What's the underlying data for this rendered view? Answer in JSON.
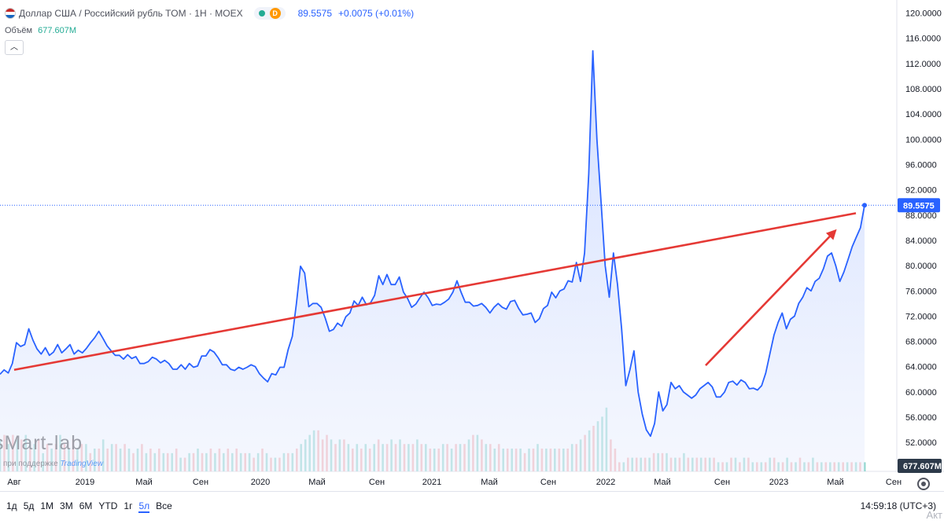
{
  "header": {
    "title": "Доллар США / Российский рубль TOM · 1H · MOEX",
    "flag_icon": "us-ru-flag-icon",
    "status_icon": "market-open-dot-icon",
    "delay_badge": "D",
    "last_price": "89.5575",
    "change": "+0.0075 (+0.01%)",
    "volume_label": "Объём",
    "volume_value": "677.607M",
    "collapse_icon": "chevron-up-icon"
  },
  "watermark": {
    "brand": "sMart-lab",
    "powered_prefix": "при поддержке",
    "powered_brand": "TradingView"
  },
  "bottom_bar": {
    "ranges": [
      "1д",
      "5д",
      "1М",
      "3М",
      "6М",
      "YTD",
      "1г",
      "5л",
      "Все"
    ],
    "active_range": "5л",
    "time": "14:59:18 (UTC+3)",
    "settings_icon": "gear-icon",
    "corner_text": "Акт"
  },
  "colors": {
    "line": "#2962ff",
    "area": "#e3ebff",
    "trend": "#e53935",
    "volume_up": "#7fd1c5",
    "volume_down": "#f5a3a3"
  },
  "chart_data": {
    "type": "area",
    "title": "Доллар США / Российский рубль TOM",
    "x_labels": [
      "Авг",
      "2019",
      "Май",
      "Сен",
      "2020",
      "Май",
      "Сен",
      "2021",
      "Май",
      "Сен",
      "2022",
      "Май",
      "Сен",
      "2023",
      "Май",
      "Сен"
    ],
    "y_ticks": [
      "120.0000",
      "116.0000",
      "112.0000",
      "108.0000",
      "104.0000",
      "100.0000",
      "96.0000",
      "92.0000",
      "88.0000",
      "84.0000",
      "80.0000",
      "76.0000",
      "72.0000",
      "68.0000",
      "64.0000",
      "60.0000",
      "56.0000",
      "52.0000"
    ],
    "ylim": [
      49.0,
      121.0
    ],
    "xlim": [
      0,
      1140
    ],
    "series": [
      {
        "values": [
          62.8,
          63.5,
          63.0,
          64.5,
          67.8,
          67.2,
          67.5,
          70.0,
          68.2,
          66.8,
          66.0,
          67.0,
          65.8,
          66.3,
          67.5,
          66.2,
          66.8,
          67.5,
          66.0,
          66.6,
          66.2,
          66.9,
          67.8,
          68.6,
          69.6,
          68.5,
          67.3,
          66.5,
          65.8,
          65.8,
          65.2,
          65.9,
          65.3,
          65.6,
          64.5,
          64.5,
          64.8,
          65.5,
          65.2,
          64.6,
          65.0,
          64.5,
          63.6,
          63.6,
          64.3,
          63.6,
          64.5,
          63.9,
          64.1,
          65.7,
          65.7,
          66.7,
          66.3,
          65.4,
          64.3,
          64.3,
          63.6,
          63.4,
          63.9,
          63.6,
          63.9,
          64.3,
          64.0,
          62.9,
          62.2,
          61.6,
          62.9,
          62.7,
          63.9,
          63.9,
          66.7,
          68.8,
          74.0,
          79.9,
          78.8,
          73.5,
          74.0,
          74.0,
          73.4,
          71.7,
          69.6,
          69.9,
          70.9,
          70.4,
          71.9,
          72.5,
          74.4,
          73.7,
          75.0,
          73.8,
          74.1,
          75.3,
          78.4,
          77.0,
          78.6,
          77.0,
          77.0,
          78.2,
          75.8,
          74.8,
          73.4,
          73.9,
          74.9,
          75.8,
          74.9,
          73.7,
          73.9,
          73.8,
          74.2,
          74.7,
          75.8,
          77.6,
          75.8,
          74.2,
          74.2,
          73.6,
          73.7,
          74.0,
          73.4,
          72.5,
          73.4,
          74.0,
          73.4,
          73.1,
          74.3,
          74.5,
          73.2,
          72.2,
          72.3,
          72.5,
          71.0,
          71.6,
          73.2,
          73.7,
          75.8,
          74.9,
          76.0,
          76.3,
          77.6,
          77.4,
          80.5,
          77.5,
          82.0,
          94.5,
          114.0,
          100.0,
          90.0,
          80.0,
          75.0,
          82.0,
          77.0,
          70.0,
          61.0,
          63.5,
          66.5,
          60.0,
          56.5,
          54.0,
          53.0,
          55.0,
          60.0,
          57.0,
          58.0,
          61.5,
          60.5,
          61.0,
          60.0,
          59.5,
          59.0,
          59.5,
          60.5,
          61.0,
          61.5,
          60.8,
          59.2,
          59.2,
          60.0,
          61.5,
          61.7,
          61.1,
          61.9,
          61.5,
          60.5,
          60.6,
          60.3,
          61.0,
          63.0,
          66.0,
          69.0,
          71.0,
          72.5,
          70.0,
          71.5,
          72.0,
          74.0,
          75.0,
          76.5,
          76.0,
          77.5,
          78.0,
          79.5,
          81.5,
          82.0,
          80.0,
          77.5,
          79.0,
          81.0,
          83.0,
          84.5,
          86.0,
          89.5575
        ]
      }
    ],
    "trend_lines": [
      {
        "x0": 18,
        "y0": 63.5,
        "x1": 1088,
        "y1": 88.3
      },
      {
        "x0": 897,
        "y0": 64.2,
        "x1": 1060,
        "y1": 85.3,
        "arrow": true
      }
    ],
    "last_value_label": "89.5575",
    "volume": {
      "label": "677.607M",
      "values": [
        7,
        8,
        6,
        8,
        7,
        7,
        8,
        5,
        6,
        7,
        4,
        6,
        5,
        6,
        8,
        6,
        5,
        7,
        5,
        6,
        6,
        4,
        5,
        5,
        7,
        5,
        6,
        6,
        5,
        6,
        5,
        4,
        5,
        6,
        4,
        5,
        4,
        5,
        4,
        4,
        4,
        5,
        3,
        3,
        4,
        4,
        5,
        4,
        4,
        5,
        4,
        5,
        4,
        5,
        4,
        5,
        4,
        4,
        4,
        3,
        4,
        5,
        4,
        3,
        3,
        3,
        4,
        4,
        4,
        5,
        6,
        7,
        8,
        9,
        9,
        7,
        8,
        7,
        6,
        7,
        7,
        6,
        5,
        6,
        5,
        6,
        5,
        6,
        7,
        6,
        6,
        7,
        6,
        7,
        6,
        6,
        6,
        7,
        6,
        6,
        5,
        5,
        5,
        6,
        6,
        5,
        6,
        6,
        6,
        7,
        8,
        8,
        7,
        6,
        6,
        5,
        6,
        5,
        5,
        5,
        5,
        5,
        4,
        5,
        5,
        6,
        5,
        5,
        5,
        5,
        5,
        5,
        5,
        6,
        6,
        7,
        8,
        9,
        10,
        11,
        12,
        14,
        7,
        5,
        2,
        2,
        3,
        3,
        3,
        3,
        3,
        3,
        4,
        4,
        4,
        4,
        3,
        3,
        3,
        4,
        3,
        3,
        3,
        3,
        3,
        3,
        3,
        2,
        2,
        2,
        3,
        3,
        2,
        3,
        3,
        2,
        2,
        2,
        2,
        3,
        3,
        2,
        2,
        3,
        2,
        2,
        3,
        2,
        2,
        3,
        2,
        2,
        2,
        2,
        2,
        2,
        2,
        2,
        2,
        2,
        2,
        2
      ],
      "up": [
        true,
        false,
        true,
        false,
        true,
        false,
        true,
        false,
        true,
        false,
        true,
        false,
        true,
        false,
        true,
        false,
        true,
        false,
        true,
        false,
        true,
        false,
        true,
        false,
        true,
        false,
        true,
        false,
        true,
        false,
        true,
        false,
        true,
        false,
        true,
        false,
        true,
        false,
        true,
        false,
        true,
        false,
        true,
        false,
        true,
        false,
        true,
        false,
        true,
        false,
        true,
        false,
        true,
        false,
        true,
        false,
        true,
        false,
        true,
        false,
        true,
        false,
        true,
        false,
        true,
        false,
        true,
        false,
        true,
        false,
        true,
        true,
        true,
        true,
        false,
        false,
        false,
        true,
        false,
        true,
        false,
        true,
        false,
        true,
        false,
        true,
        false,
        true,
        false,
        true,
        false,
        true,
        false,
        true,
        false,
        true,
        false,
        true,
        false,
        true,
        false,
        true,
        false,
        true,
        false,
        true,
        false,
        true,
        false,
        true,
        false,
        true,
        false,
        true,
        false,
        true,
        false,
        true,
        false,
        true,
        false,
        true,
        false,
        true,
        false,
        true,
        false,
        true,
        false,
        true,
        false,
        true,
        false,
        true,
        false,
        true,
        false,
        true,
        false,
        true,
        true,
        true,
        false,
        false,
        false,
        true,
        false,
        true,
        false,
        true,
        false,
        true,
        false,
        true,
        false,
        true,
        false,
        true,
        false,
        true,
        false,
        true,
        false,
        true,
        false,
        true,
        false,
        true,
        false,
        true,
        false,
        true,
        false,
        true,
        false,
        true,
        false,
        true,
        false,
        true,
        false,
        true,
        false,
        true,
        false,
        true,
        false,
        true,
        false,
        true,
        false,
        true,
        false,
        true,
        false,
        true,
        false,
        true,
        false,
        true,
        false,
        true,
        false,
        true,
        false,
        true,
        false,
        true,
        false,
        true
      ]
    },
    "grid": false,
    "legend": "top-left"
  }
}
